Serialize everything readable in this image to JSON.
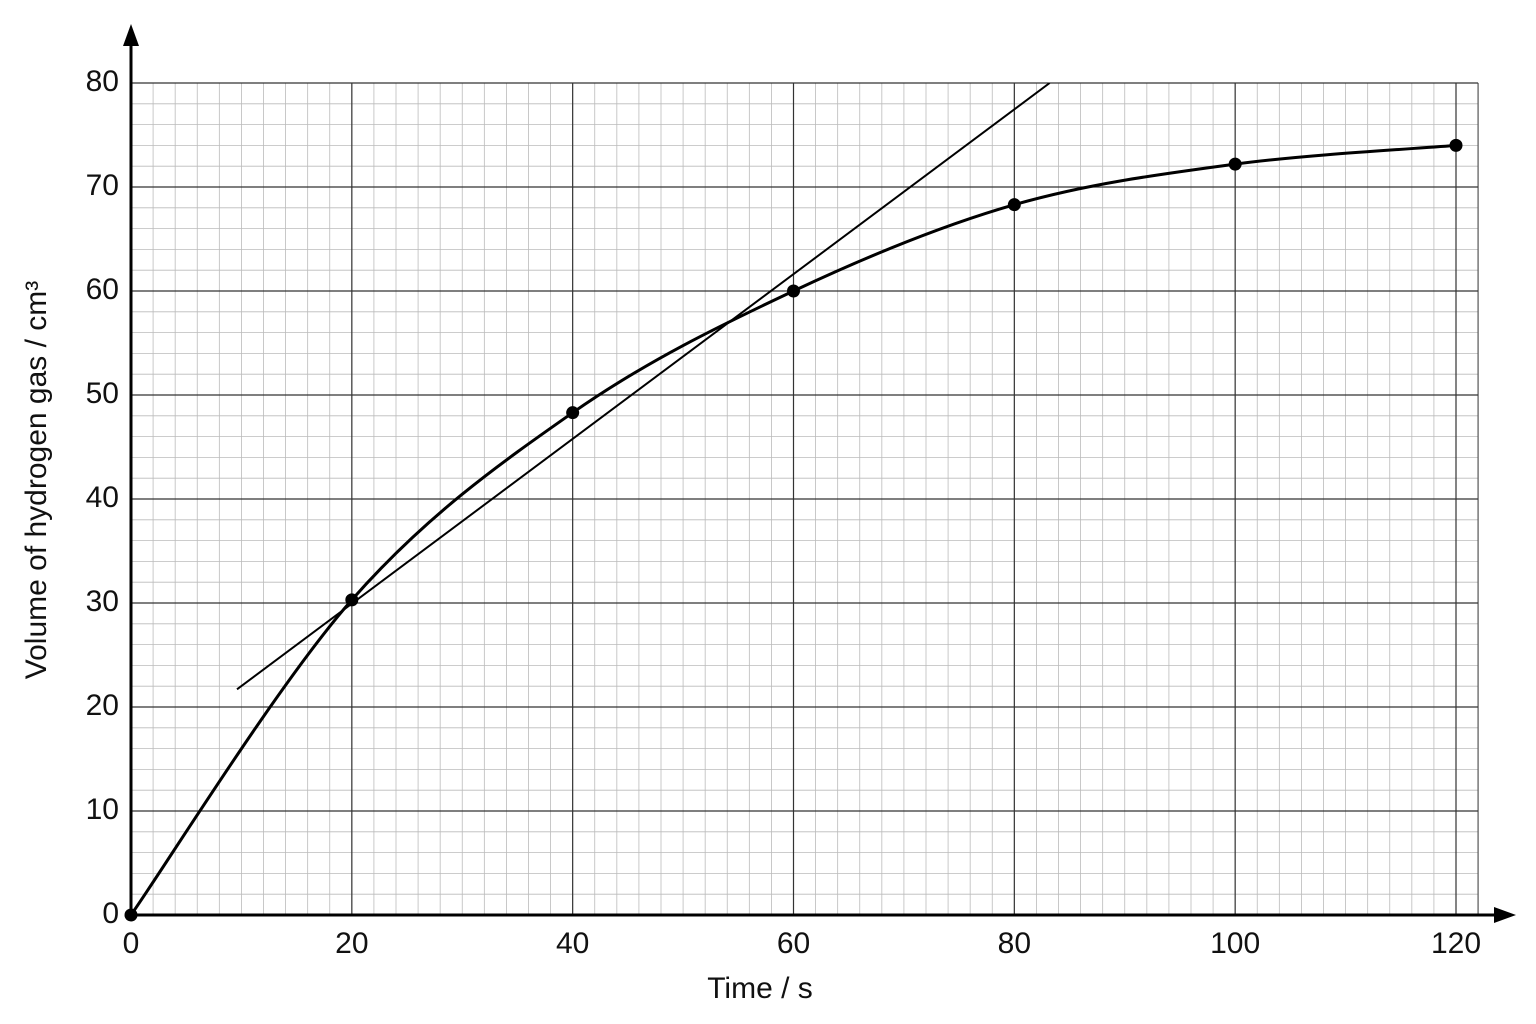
{
  "chart_data": {
    "type": "line",
    "xlabel": "Time / s",
    "ylabel": "Volume of hydrogen gas / cm³",
    "xlim": [
      0,
      122
    ],
    "ylim": [
      0,
      80
    ],
    "xticks": [
      0,
      20,
      40,
      60,
      80,
      100,
      120
    ],
    "yticks": [
      0,
      10,
      20,
      30,
      40,
      50,
      60,
      70,
      80
    ],
    "grid": true,
    "series": [
      {
        "color": "#000000",
        "markers": true,
        "smooth": true,
        "x": [
          0,
          20,
          40,
          60,
          80,
          100,
          120
        ],
        "values": [
          0,
          30.3,
          48.3,
          60,
          68.3,
          72.2,
          74
        ]
      },
      {
        "color": "#000000",
        "markers": false,
        "smooth": false,
        "x": [
          9.6,
          83.2
        ],
        "values": [
          21.7,
          80
        ]
      }
    ]
  }
}
